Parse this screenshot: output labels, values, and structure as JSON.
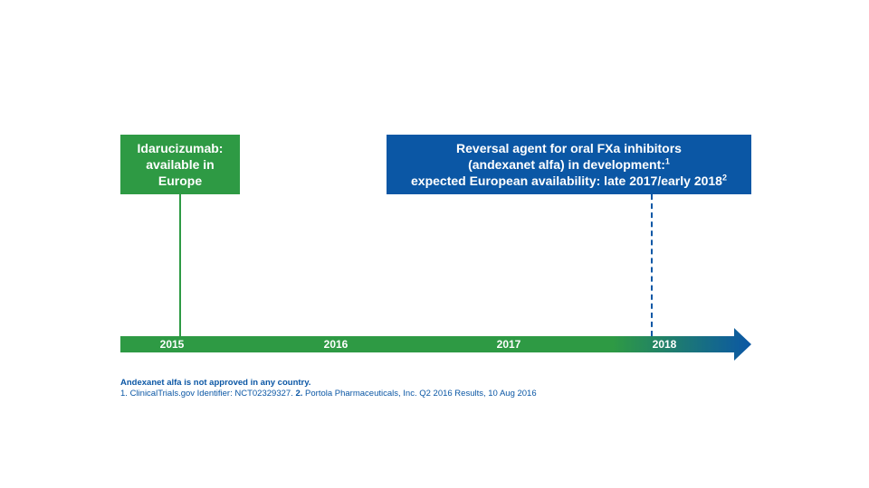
{
  "boxes": {
    "idarucizumab": {
      "lines": [
        "Idarucizumab:",
        "available in",
        "Europe"
      ]
    },
    "andexanet": {
      "line1": "Reversal agent for oral FXa inhibitors",
      "line2": "(andexanet alfa) in development:",
      "line2_sup": "1",
      "line3": "expected European availability: late 2017/early 2018",
      "line3_sup": "2"
    }
  },
  "timeline": {
    "years": [
      "2015",
      "2016",
      "2017",
      "2018"
    ]
  },
  "footer": {
    "note": "Andexanet alfa is not approved in any country.",
    "ref1_num": "1.",
    "ref1_text": "ClinicalTrials.gov Identifier: NCT02329327.",
    "ref2_num": "2.",
    "ref2_text": "Portola Pharmaceuticals, Inc. Q2 2016 Results, 10 Aug 2016"
  },
  "colors": {
    "green": "#2e9a44",
    "blue": "#0b57a5"
  }
}
